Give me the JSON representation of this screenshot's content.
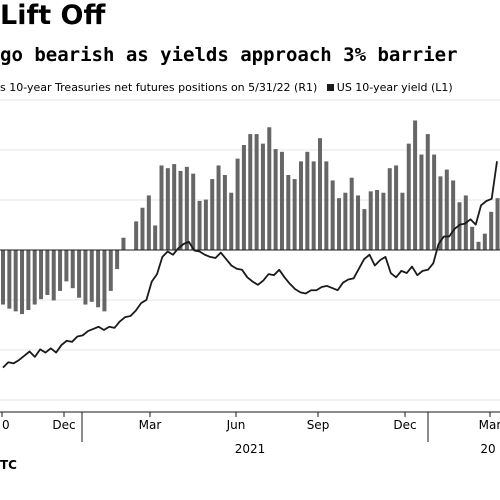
{
  "title": "Lift Off",
  "subtitle": "go bearish as yields approach 3% barrier",
  "legend": [
    {
      "label": "s 10-year Treasuries net futures positions on 5/31/22 (R1)",
      "color": "#666666"
    },
    {
      "label": "US 10-year yield (L1)",
      "color": "#1a1a1a"
    }
  ],
  "source": "TC",
  "chart_data": {
    "type": "bar",
    "x_tick_labels": [
      "0",
      "Dec",
      "Mar",
      "Jun",
      "Sep",
      "Dec",
      "Mar"
    ],
    "year_labels": [
      "2021",
      "20"
    ],
    "bar_color": "#666666",
    "line_color": "#1a1a1a",
    "ylim_bars": [
      -52,
      110
    ],
    "ylim_line": [
      0.4,
      1.9
    ],
    "series": [
      {
        "kind": "bar",
        "values": [
          -40,
          -43,
          -45,
          -47,
          -44,
          -40,
          -36,
          -33,
          -37,
          -30,
          -23,
          -28,
          -35,
          -40,
          -38,
          -42,
          -45,
          -30,
          -14,
          9,
          0,
          21,
          31,
          40,
          18,
          62,
          60,
          63,
          58,
          61,
          56,
          36,
          37,
          52,
          62,
          55,
          42,
          67,
          77,
          85,
          85,
          78,
          90,
          74,
          72,
          55,
          52,
          65,
          72,
          65,
          82,
          65,
          51,
          38,
          42,
          53,
          40,
          30,
          43,
          44,
          42,
          60,
          62,
          42,
          78,
          95,
          70,
          85,
          70,
          54,
          59,
          51,
          35,
          40,
          17,
          6,
          12,
          28,
          38,
          42,
          38,
          46,
          52,
          62,
          55,
          90,
          90,
          57,
          47,
          90,
          72,
          99,
          110
        ]
      },
      {
        "kind": "line",
        "values": [
          0.55,
          0.6,
          0.59,
          0.62,
          0.66,
          0.7,
          0.65,
          0.72,
          0.69,
          0.73,
          0.69,
          0.76,
          0.8,
          0.79,
          0.84,
          0.85,
          0.89,
          0.91,
          0.93,
          0.9,
          0.93,
          0.92,
          0.98,
          1.02,
          1.03,
          1.08,
          1.15,
          1.18,
          1.35,
          1.42,
          1.58,
          1.63,
          1.6,
          1.66,
          1.7,
          1.72,
          1.64,
          1.63,
          1.6,
          1.58,
          1.57,
          1.62,
          1.56,
          1.5,
          1.47,
          1.46,
          1.39,
          1.35,
          1.32,
          1.36,
          1.42,
          1.41,
          1.46,
          1.39,
          1.33,
          1.28,
          1.25,
          1.24,
          1.27,
          1.27,
          1.3,
          1.31,
          1.29,
          1.27,
          1.34,
          1.37,
          1.38,
          1.47,
          1.56,
          1.6,
          1.5,
          1.55,
          1.58,
          1.43,
          1.39,
          1.45,
          1.43,
          1.49,
          1.41,
          1.45,
          1.46,
          1.52,
          1.7,
          1.77,
          1.77,
          1.84,
          1.88,
          1.89,
          1.93,
          1.88,
          2.06,
          2.1,
          2.12,
          2.47
        ]
      }
    ]
  }
}
